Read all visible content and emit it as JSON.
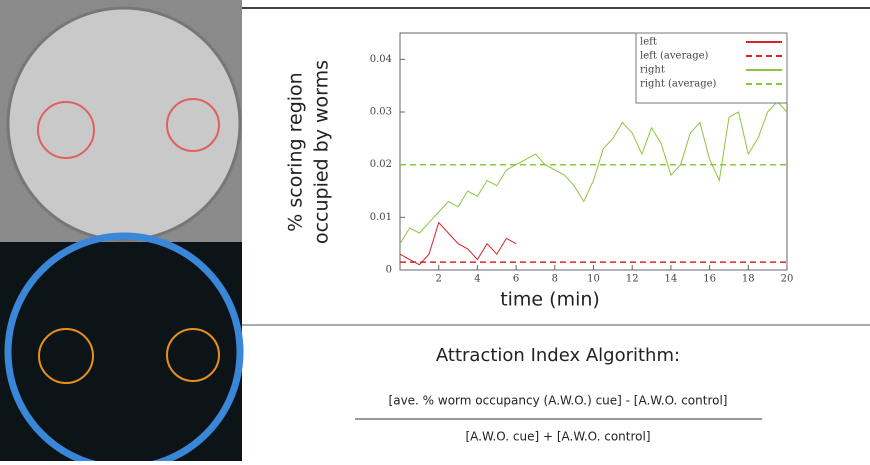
{
  "chart_data": {
    "type": "line",
    "ylabel": [
      "% scoring region",
      "occupied by worms"
    ],
    "xlabel": "time (min)",
    "xlim": [
      0,
      20
    ],
    "xticks": [
      2,
      4,
      6,
      8,
      10,
      12,
      14,
      16,
      18,
      20
    ],
    "ylim": [
      0,
      0.045
    ],
    "yticks": [
      0,
      0.01,
      0.02,
      0.03,
      0.04
    ],
    "legend": "top-right",
    "series": [
      {
        "name": "left",
        "color": "#d62728",
        "dash": false,
        "x": [
          0,
          0.5,
          1,
          1.5,
          2,
          2.5,
          3,
          3.5,
          4,
          4.5,
          5,
          5.5,
          6
        ],
        "values": [
          0.003,
          0.002,
          0.001,
          0.003,
          0.009,
          0.007,
          0.005,
          0.004,
          0.002,
          0.005,
          0.003,
          0.006,
          0.005
        ]
      },
      {
        "name": "left (average)",
        "color": "#d62728",
        "dash": true,
        "x": [
          0,
          20
        ],
        "values": [
          0.0015,
          0.0015
        ]
      },
      {
        "name": "right",
        "color": "#8cc63f",
        "dash": false,
        "x": [
          0,
          0.5,
          1,
          1.5,
          2,
          2.5,
          3,
          3.5,
          4,
          4.5,
          5,
          5.5,
          6,
          6.5,
          7,
          7.5,
          8,
          8.5,
          9,
          9.5,
          10,
          10.5,
          11,
          11.5,
          12,
          12.5,
          13,
          13.5,
          14,
          14.5,
          15,
          15.5,
          16,
          16.5,
          17,
          17.5,
          18,
          18.5,
          19,
          19.5,
          20
        ],
        "values": [
          0.005,
          0.008,
          0.007,
          0.009,
          0.011,
          0.013,
          0.012,
          0.015,
          0.014,
          0.017,
          0.016,
          0.019,
          0.02,
          0.021,
          0.022,
          0.02,
          0.019,
          0.018,
          0.016,
          0.013,
          0.017,
          0.023,
          0.025,
          0.028,
          0.026,
          0.022,
          0.027,
          0.024,
          0.018,
          0.02,
          0.026,
          0.028,
          0.021,
          0.017,
          0.029,
          0.03,
          0.022,
          0.025,
          0.03,
          0.032,
          0.03
        ]
      },
      {
        "name": "right (average)",
        "color": "#8cc63f",
        "dash": true,
        "x": [
          0,
          20
        ],
        "values": [
          0.02,
          0.02
        ]
      }
    ]
  },
  "formula": {
    "title": "Attraction Index Algorithm:",
    "numerator": "[ave. % worm occupancy (A.W.O.) cue] - [A.W.O. control]",
    "denominator": "[A.W.O. cue] + [A.W.O. control]"
  }
}
